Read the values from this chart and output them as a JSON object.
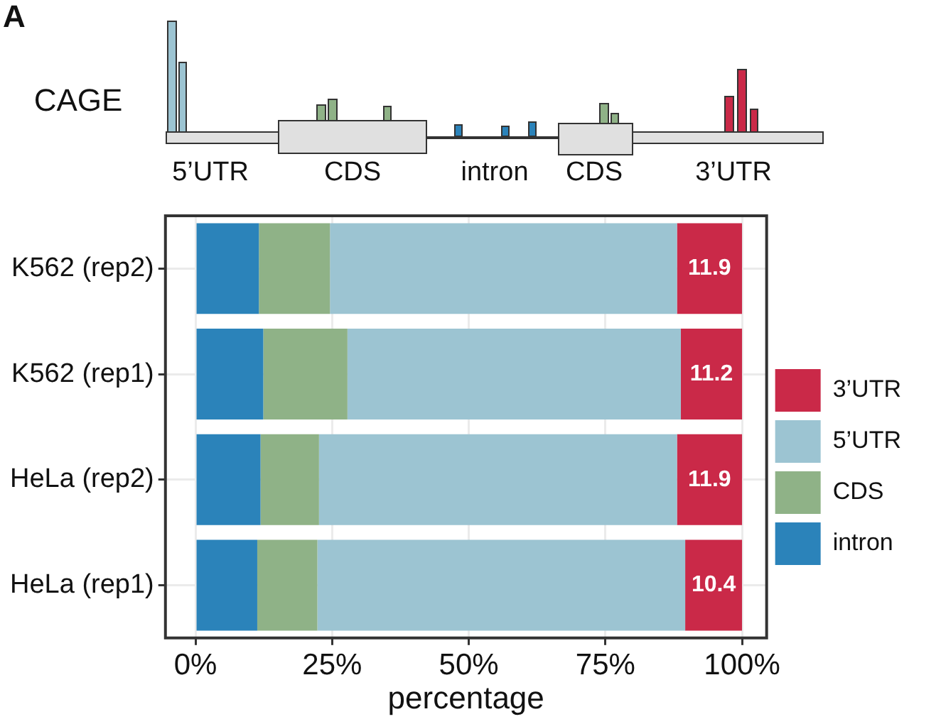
{
  "chart_data": {
    "type": "bar",
    "orientation": "horizontal",
    "stacked": true,
    "categories": [
      "K562 (rep2)",
      "K562 (rep1)",
      "HeLa (rep2)",
      "HeLa (rep1)"
    ],
    "series": [
      {
        "name": "intron",
        "color": "#2b83ba",
        "values": [
          11.6,
          12.4,
          11.9,
          11.3
        ]
      },
      {
        "name": "CDS",
        "color": "#8fb287",
        "values": [
          13.0,
          15.4,
          10.7,
          11.0
        ]
      },
      {
        "name": "5’UTR",
        "color": "#9cc4d2",
        "values": [
          63.5,
          61.0,
          65.5,
          67.3
        ]
      },
      {
        "name": "3’UTR",
        "color": "#ca2948",
        "values": [
          11.9,
          11.2,
          11.9,
          10.4
        ],
        "value_labels": [
          "11.9",
          "11.2",
          "11.9",
          "10.4"
        ]
      }
    ],
    "xlim": [
      -5.5,
      104.5
    ],
    "xticks": [
      {
        "value": 0,
        "label": "0%"
      },
      {
        "value": 25,
        "label": "25%"
      },
      {
        "value": 50,
        "label": "50%"
      },
      {
        "value": 75,
        "label": "75%"
      },
      {
        "value": 100,
        "label": "100%"
      }
    ],
    "xlabel": "percentage",
    "grid": true,
    "legend": "right",
    "annotations": [
      "A",
      "CAGE",
      "5’UTR",
      "CDS",
      "intron",
      "CDS",
      "3’UTR"
    ]
  }
}
